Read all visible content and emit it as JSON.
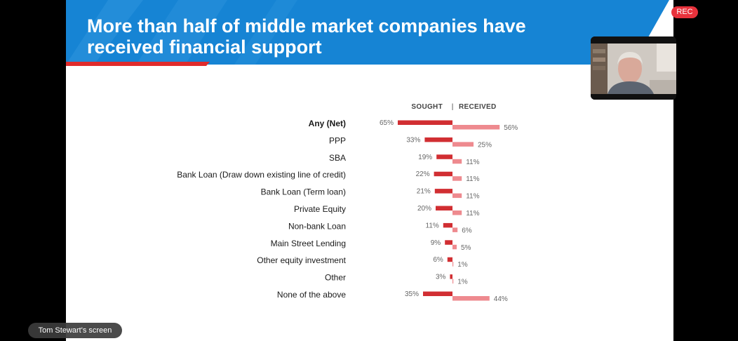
{
  "slide": {
    "title_line1": "More than half of middle market companies have",
    "title_line2": "received financial support"
  },
  "meeting": {
    "rec_label": "REC",
    "screen_share_label": "Tom Stewart's screen"
  },
  "colors": {
    "banner_blue": "#1684d4",
    "accent_red": "#e02b2b",
    "sought": "#d12e32",
    "received": "#ee8a8f"
  },
  "chart_data": {
    "type": "bar",
    "orientation": "diverging-horizontal",
    "header_left": "SOUGHT",
    "header_separator": "|",
    "header_right": "RECEIVED",
    "categories": [
      "Any (Net)",
      "PPP",
      "SBA",
      "Bank Loan (Draw down existing line of credit)",
      "Bank Loan (Term loan)",
      "Private Equity",
      "Non-bank Loan",
      "Main Street Lending",
      "Other equity investment",
      "Other",
      "None of the above"
    ],
    "bold_category": "Any (Net)",
    "series": [
      {
        "name": "SOUGHT",
        "values": [
          65,
          33,
          19,
          22,
          21,
          20,
          11,
          9,
          6,
          3,
          35
        ]
      },
      {
        "name": "RECEIVED",
        "values": [
          56,
          25,
          11,
          11,
          11,
          11,
          6,
          5,
          1,
          1,
          44
        ]
      }
    ],
    "value_suffix": "%"
  }
}
